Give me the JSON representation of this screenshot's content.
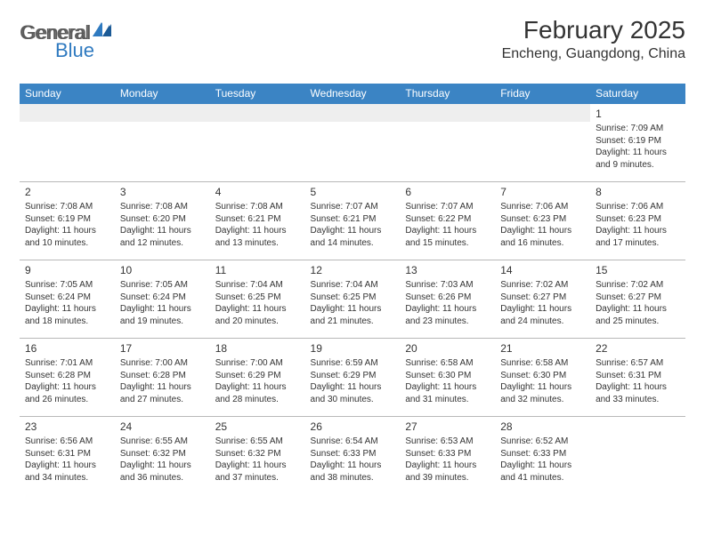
{
  "logo": {
    "text_gray": "General",
    "text_blue": "Blue"
  },
  "title": "February 2025",
  "location": "Encheng, Guangdong, China",
  "header_bg": "#3b84c4",
  "days_of_week": [
    "Sunday",
    "Monday",
    "Tuesday",
    "Wednesday",
    "Thursday",
    "Friday",
    "Saturday"
  ],
  "weeks": [
    [
      null,
      null,
      null,
      null,
      null,
      null,
      {
        "n": "1",
        "sr": "Sunrise: 7:09 AM",
        "ss": "Sunset: 6:19 PM",
        "d1": "Daylight: 11 hours",
        "d2": "and 9 minutes."
      }
    ],
    [
      {
        "n": "2",
        "sr": "Sunrise: 7:08 AM",
        "ss": "Sunset: 6:19 PM",
        "d1": "Daylight: 11 hours",
        "d2": "and 10 minutes."
      },
      {
        "n": "3",
        "sr": "Sunrise: 7:08 AM",
        "ss": "Sunset: 6:20 PM",
        "d1": "Daylight: 11 hours",
        "d2": "and 12 minutes."
      },
      {
        "n": "4",
        "sr": "Sunrise: 7:08 AM",
        "ss": "Sunset: 6:21 PM",
        "d1": "Daylight: 11 hours",
        "d2": "and 13 minutes."
      },
      {
        "n": "5",
        "sr": "Sunrise: 7:07 AM",
        "ss": "Sunset: 6:21 PM",
        "d1": "Daylight: 11 hours",
        "d2": "and 14 minutes."
      },
      {
        "n": "6",
        "sr": "Sunrise: 7:07 AM",
        "ss": "Sunset: 6:22 PM",
        "d1": "Daylight: 11 hours",
        "d2": "and 15 minutes."
      },
      {
        "n": "7",
        "sr": "Sunrise: 7:06 AM",
        "ss": "Sunset: 6:23 PM",
        "d1": "Daylight: 11 hours",
        "d2": "and 16 minutes."
      },
      {
        "n": "8",
        "sr": "Sunrise: 7:06 AM",
        "ss": "Sunset: 6:23 PM",
        "d1": "Daylight: 11 hours",
        "d2": "and 17 minutes."
      }
    ],
    [
      {
        "n": "9",
        "sr": "Sunrise: 7:05 AM",
        "ss": "Sunset: 6:24 PM",
        "d1": "Daylight: 11 hours",
        "d2": "and 18 minutes."
      },
      {
        "n": "10",
        "sr": "Sunrise: 7:05 AM",
        "ss": "Sunset: 6:24 PM",
        "d1": "Daylight: 11 hours",
        "d2": "and 19 minutes."
      },
      {
        "n": "11",
        "sr": "Sunrise: 7:04 AM",
        "ss": "Sunset: 6:25 PM",
        "d1": "Daylight: 11 hours",
        "d2": "and 20 minutes."
      },
      {
        "n": "12",
        "sr": "Sunrise: 7:04 AM",
        "ss": "Sunset: 6:25 PM",
        "d1": "Daylight: 11 hours",
        "d2": "and 21 minutes."
      },
      {
        "n": "13",
        "sr": "Sunrise: 7:03 AM",
        "ss": "Sunset: 6:26 PM",
        "d1": "Daylight: 11 hours",
        "d2": "and 23 minutes."
      },
      {
        "n": "14",
        "sr": "Sunrise: 7:02 AM",
        "ss": "Sunset: 6:27 PM",
        "d1": "Daylight: 11 hours",
        "d2": "and 24 minutes."
      },
      {
        "n": "15",
        "sr": "Sunrise: 7:02 AM",
        "ss": "Sunset: 6:27 PM",
        "d1": "Daylight: 11 hours",
        "d2": "and 25 minutes."
      }
    ],
    [
      {
        "n": "16",
        "sr": "Sunrise: 7:01 AM",
        "ss": "Sunset: 6:28 PM",
        "d1": "Daylight: 11 hours",
        "d2": "and 26 minutes."
      },
      {
        "n": "17",
        "sr": "Sunrise: 7:00 AM",
        "ss": "Sunset: 6:28 PM",
        "d1": "Daylight: 11 hours",
        "d2": "and 27 minutes."
      },
      {
        "n": "18",
        "sr": "Sunrise: 7:00 AM",
        "ss": "Sunset: 6:29 PM",
        "d1": "Daylight: 11 hours",
        "d2": "and 28 minutes."
      },
      {
        "n": "19",
        "sr": "Sunrise: 6:59 AM",
        "ss": "Sunset: 6:29 PM",
        "d1": "Daylight: 11 hours",
        "d2": "and 30 minutes."
      },
      {
        "n": "20",
        "sr": "Sunrise: 6:58 AM",
        "ss": "Sunset: 6:30 PM",
        "d1": "Daylight: 11 hours",
        "d2": "and 31 minutes."
      },
      {
        "n": "21",
        "sr": "Sunrise: 6:58 AM",
        "ss": "Sunset: 6:30 PM",
        "d1": "Daylight: 11 hours",
        "d2": "and 32 minutes."
      },
      {
        "n": "22",
        "sr": "Sunrise: 6:57 AM",
        "ss": "Sunset: 6:31 PM",
        "d1": "Daylight: 11 hours",
        "d2": "and 33 minutes."
      }
    ],
    [
      {
        "n": "23",
        "sr": "Sunrise: 6:56 AM",
        "ss": "Sunset: 6:31 PM",
        "d1": "Daylight: 11 hours",
        "d2": "and 34 minutes."
      },
      {
        "n": "24",
        "sr": "Sunrise: 6:55 AM",
        "ss": "Sunset: 6:32 PM",
        "d1": "Daylight: 11 hours",
        "d2": "and 36 minutes."
      },
      {
        "n": "25",
        "sr": "Sunrise: 6:55 AM",
        "ss": "Sunset: 6:32 PM",
        "d1": "Daylight: 11 hours",
        "d2": "and 37 minutes."
      },
      {
        "n": "26",
        "sr": "Sunrise: 6:54 AM",
        "ss": "Sunset: 6:33 PM",
        "d1": "Daylight: 11 hours",
        "d2": "and 38 minutes."
      },
      {
        "n": "27",
        "sr": "Sunrise: 6:53 AM",
        "ss": "Sunset: 6:33 PM",
        "d1": "Daylight: 11 hours",
        "d2": "and 39 minutes."
      },
      {
        "n": "28",
        "sr": "Sunrise: 6:52 AM",
        "ss": "Sunset: 6:33 PM",
        "d1": "Daylight: 11 hours",
        "d2": "and 41 minutes."
      },
      null
    ]
  ]
}
